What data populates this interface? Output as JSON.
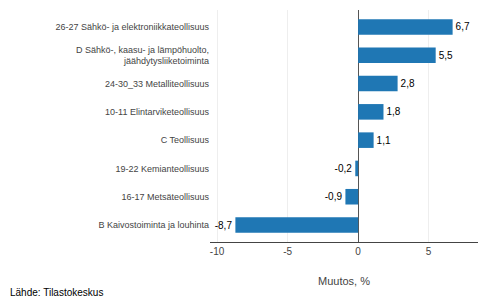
{
  "chart_data": {
    "type": "bar",
    "orientation": "horizontal",
    "categories": [
      "B Kaivostoiminta ja louhinta",
      "16-17 Metsäteollisuus",
      "19-22 Kemianteollisuus",
      "C Teollisuus",
      "10-11 Elintarviketeollisuus",
      "24-30_33 Metalliteollisuus",
      "D Sähkö-, kaasu- ja lämpöhuolto,\njäähdytysliiketoiminta",
      "26-27 Sähkö- ja elektroniikkateollisuus"
    ],
    "values": [
      -8.7,
      -0.9,
      -0.2,
      1.1,
      1.8,
      2.8,
      5.5,
      6.7
    ],
    "value_labels": [
      "-8,7",
      "-0,9",
      "-0,2",
      "1,1",
      "1,8",
      "2,8",
      "5,5",
      "6,7"
    ],
    "data_labels": true,
    "color": "#1f77b4",
    "xlabel": "Muutos, %",
    "xlim": [
      -10.5,
      8.5
    ],
    "xticks": [
      -10,
      -5,
      0,
      5
    ],
    "grid": true,
    "annotations": [
      "Lähde: Tilastokeskus"
    ]
  }
}
